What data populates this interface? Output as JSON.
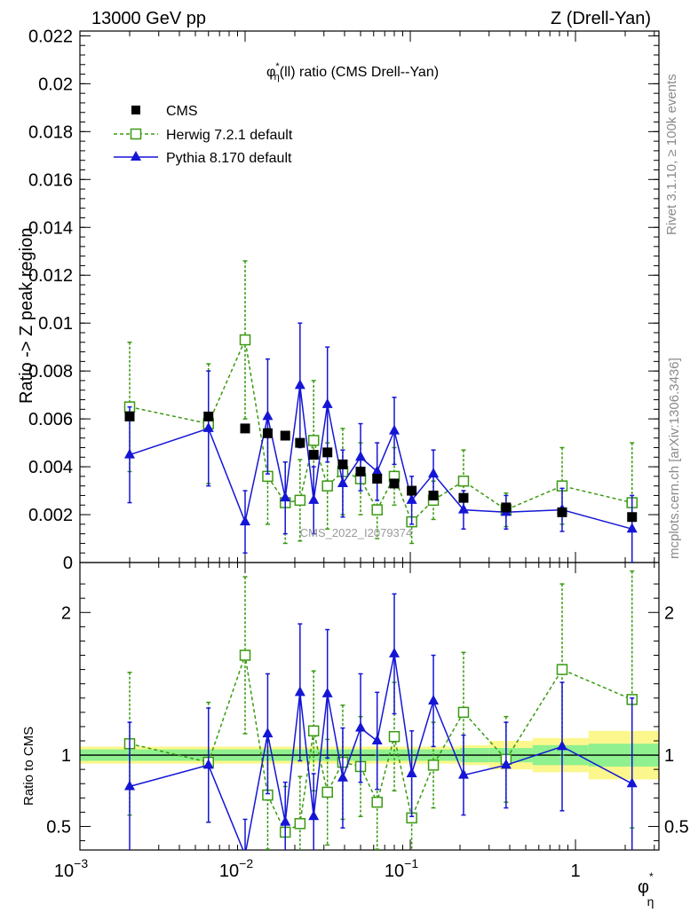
{
  "header": {
    "left": "13000 GeV pp",
    "right": "Z (Drell-Yan)"
  },
  "side_labels": {
    "right_top": "Rivet 3.1.10, ≥ 100k events",
    "right_bottom": "mcplots.cern.ch [arXiv:1306.3436]"
  },
  "watermark": "CMS_2022_I2079374",
  "colors": {
    "cms": "#000000",
    "herwig": "#3a9a12",
    "pythia": "#1515d6",
    "band_inner": "#8ef08e",
    "band_outer": "#fbf78c"
  },
  "chart_data": [
    {
      "type": "scatter",
      "panel": "main",
      "title": "φ*η(ll) ratio (CMS Drell--Yan)",
      "title_parts": {
        "base": "φ",
        "sup": "*",
        "sub": "η",
        "rest": "(ll) ratio (CMS Drell--Yan)"
      },
      "ylabel": "Ratio -> Z peak region",
      "xscale": "log",
      "xlim": [
        0.001,
        3.2
      ],
      "ylim": [
        0,
        0.0222
      ],
      "yticks": [
        {
          "v": 0,
          "label": "0"
        },
        {
          "v": 0.002,
          "label": "0.002"
        },
        {
          "v": 0.004,
          "label": "0.004"
        },
        {
          "v": 0.006,
          "label": "0.006"
        },
        {
          "v": 0.008,
          "label": "0.008"
        },
        {
          "v": 0.01,
          "label": "0.01"
        },
        {
          "v": 0.012,
          "label": "0.012"
        },
        {
          "v": 0.014,
          "label": "0.014"
        },
        {
          "v": 0.016,
          "label": "0.016"
        },
        {
          "v": 0.018,
          "label": "0.018"
        },
        {
          "v": 0.02,
          "label": "0.02"
        },
        {
          "v": 0.022,
          "label": "0.022"
        }
      ],
      "legend": {
        "placement": "top-left",
        "entries": [
          {
            "name": "CMS",
            "marker": "filled-square"
          },
          {
            "name": "Herwig 7.2.1 default",
            "marker": "open-square"
          },
          {
            "name": "Pythia 8.170 default",
            "marker": "filled-triangle"
          }
        ]
      },
      "series": [
        {
          "name": "CMS",
          "style": "points",
          "x": [
            0.002,
            0.006,
            0.01,
            0.0137,
            0.0175,
            0.0215,
            0.026,
            0.0315,
            0.039,
            0.05,
            0.063,
            0.08,
            0.102,
            0.138,
            0.21,
            0.38,
            0.83,
            2.2
          ],
          "y": [
            0.0061,
            0.0061,
            0.0056,
            0.0054,
            0.0053,
            0.005,
            0.0045,
            0.0046,
            0.0041,
            0.0038,
            0.0035,
            0.0033,
            0.003,
            0.0028,
            0.0027,
            0.0023,
            0.0021,
            0.0019
          ]
        },
        {
          "name": "Herwig 7.2.1 default",
          "style": "dashed",
          "x": [
            0.002,
            0.006,
            0.01,
            0.0137,
            0.0175,
            0.0215,
            0.026,
            0.0315,
            0.039,
            0.05,
            0.063,
            0.08,
            0.102,
            0.138,
            0.21,
            0.38,
            0.83,
            2.2
          ],
          "y": [
            0.0065,
            0.0058,
            0.0093,
            0.0036,
            0.0025,
            0.0026,
            0.0051,
            0.0032,
            0.0038,
            0.0035,
            0.0022,
            0.0036,
            0.0017,
            0.0026,
            0.0034,
            0.0022,
            0.0032,
            0.0025
          ],
          "err": [
            0.0027,
            0.0025,
            0.0033,
            0.002,
            0.0017,
            0.0017,
            0.0025,
            0.0018,
            0.0018,
            0.0015,
            0.0012,
            0.0012,
            0.0009,
            0.0008,
            0.0013,
            0.0007,
            0.0016,
            0.0025
          ]
        },
        {
          "name": "Pythia 8.170 default",
          "style": "solid",
          "x": [
            0.002,
            0.006,
            0.01,
            0.0137,
            0.0175,
            0.0215,
            0.026,
            0.0315,
            0.039,
            0.05,
            0.063,
            0.08,
            0.102,
            0.138,
            0.21,
            0.38,
            0.83,
            2.2
          ],
          "y": [
            0.0045,
            0.0056,
            0.0017,
            0.0061,
            0.0027,
            0.0074,
            0.0026,
            0.0066,
            0.0033,
            0.0044,
            0.0038,
            0.0055,
            0.0026,
            0.0037,
            0.0022,
            0.0021,
            0.0022,
            0.0014
          ],
          "err": [
            0.002,
            0.0024,
            0.0013,
            0.0024,
            0.0015,
            0.0026,
            0.0014,
            0.0024,
            0.0014,
            0.0014,
            0.0012,
            0.0014,
            0.001,
            0.001,
            0.0008,
            0.0007,
            0.0009,
            0.0014
          ]
        }
      ]
    },
    {
      "type": "scatter",
      "panel": "ratio",
      "ylabel": "Ratio to CMS",
      "xlabel": "φ*η",
      "xlabel_parts": {
        "base": "φ",
        "sup": "*",
        "sub": "η"
      },
      "xscale": "log",
      "xlim": [
        0.001,
        3.2
      ],
      "ylim": [
        0.335,
        2.35
      ],
      "xticks": [
        {
          "v": 0.001,
          "base": "10",
          "exp": "−3"
        },
        {
          "v": 0.01,
          "base": "10",
          "exp": "−2"
        },
        {
          "v": 0.1,
          "base": "10",
          "exp": "−1"
        },
        {
          "v": 1,
          "base": "1",
          "exp": ""
        }
      ],
      "yticks": [
        {
          "v": 0.5,
          "label": "0.5"
        },
        {
          "v": 1,
          "label": "1"
        },
        {
          "v": 2,
          "label": "2"
        }
      ],
      "band_edges": [
        0.001,
        0.2,
        0.3,
        0.55,
        1.2,
        3.2
      ],
      "band_inner": [
        0.04,
        0.05,
        0.05,
        0.07,
        0.08
      ],
      "band_outer": [
        0.06,
        0.07,
        0.1,
        0.12,
        0.17
      ],
      "series": [
        {
          "name": "Herwig 7.2.1 default",
          "style": "dashed",
          "x": [
            0.002,
            0.006,
            0.01,
            0.0137,
            0.0175,
            0.0215,
            0.026,
            0.0315,
            0.039,
            0.05,
            0.063,
            0.08,
            0.102,
            0.138,
            0.21,
            0.38,
            0.83,
            2.2
          ],
          "y": [
            1.08,
            0.95,
            1.7,
            0.72,
            0.46,
            0.52,
            1.17,
            0.74,
            0.95,
            0.92,
            0.67,
            1.13,
            0.56,
            0.93,
            1.3,
            0.97,
            1.6,
            1.39
          ],
          "err": [
            0.5,
            0.42,
            0.55,
            0.38,
            0.32,
            0.33,
            0.42,
            0.37,
            0.4,
            0.35,
            0.33,
            0.38,
            0.3,
            0.3,
            0.42,
            0.3,
            0.6,
            0.9
          ]
        },
        {
          "name": "Pythia 8.170 default",
          "style": "solid",
          "x": [
            0.002,
            0.006,
            0.01,
            0.0137,
            0.0175,
            0.0215,
            0.026,
            0.0315,
            0.039,
            0.05,
            0.063,
            0.08,
            0.102,
            0.138,
            0.21,
            0.38,
            0.83,
            2.2
          ],
          "y": [
            0.78,
            0.93,
            0.3,
            1.15,
            0.53,
            1.44,
            0.57,
            1.43,
            0.84,
            1.19,
            1.1,
            1.71,
            0.87,
            1.38,
            0.86,
            0.93,
            1.06,
            0.8
          ],
          "err": [
            0.45,
            0.4,
            0.25,
            0.42,
            0.28,
            0.48,
            0.3,
            0.45,
            0.35,
            0.38,
            0.34,
            0.42,
            0.3,
            0.32,
            0.28,
            0.3,
            0.45,
            0.6
          ]
        }
      ]
    }
  ]
}
